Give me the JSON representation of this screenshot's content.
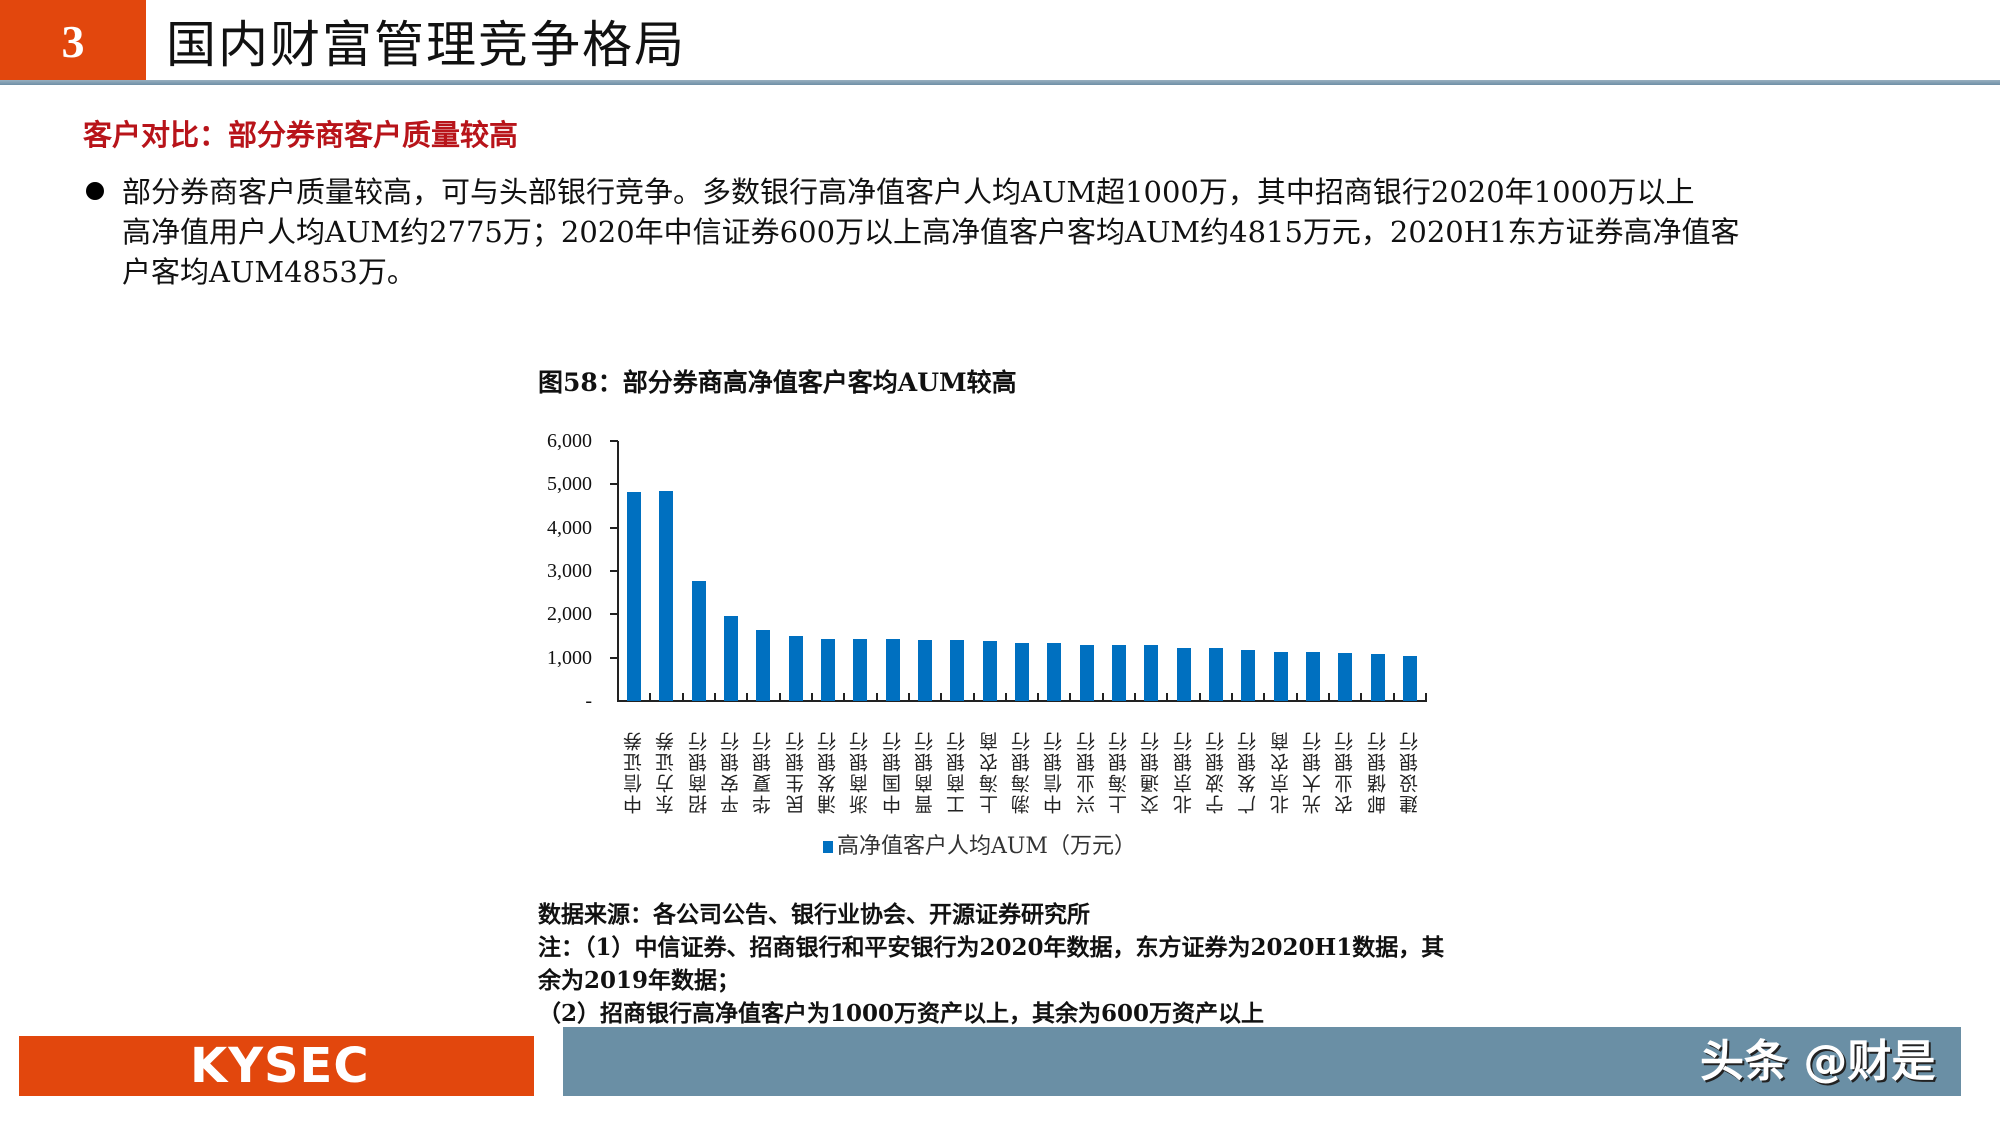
{
  "header": {
    "section_number": "3",
    "title": "国内财富管理竞争格局"
  },
  "subtitle": "客户对比：部分券商客户质量较高",
  "bullet": {
    "lines": [
      "部分券商客户质量较高，可与头部银行竞争。多数银行高净值客户人均AUM超1000万，其中招商银行2020年1000万以上",
      "高净值用户人均AUM约2775万；2020年中信证券600万以上高净值客户客均AUM约4815万元，2020H1东方证券高净值客",
      "户客均AUM4853万。"
    ]
  },
  "figure": {
    "title": "图58：部分券商高净值客户客均AUM较高",
    "legend_label": "高净值客户人均AUM（万元）",
    "source": "数据来源：各公司公告、银行业协会、开源证券研究所",
    "notes": [
      "注：（1）中信证券、招商银行和平安银行为2020年数据，东方证券为2020H1数据，其",
      "余为2019年数据；",
      "（2）招商银行高净值客户为1000万资产以上，其余为600万资产以上"
    ]
  },
  "chart_data": {
    "type": "bar",
    "title": "图58：部分券商高净值客户客均AUM较高",
    "xlabel": "",
    "ylabel": "",
    "ylim": [
      0,
      6000
    ],
    "yticks": [
      "-",
      "1,000",
      "2,000",
      "3,000",
      "4,000",
      "5,000",
      "6,000"
    ],
    "ytick_values": [
      0,
      1000,
      2000,
      3000,
      4000,
      5000,
      6000
    ],
    "grid": false,
    "legend_position": "bottom",
    "bar_color": "#0070C0",
    "categories": [
      "中信证券",
      "东方证券",
      "招商银行",
      "平安银行",
      "华夏银行",
      "民生银行",
      "浦发银行",
      "浙商银行",
      "中国银行",
      "晋商银行",
      "工商银行",
      "上海农商",
      "渤海银行",
      "中信银行",
      "兴业银行",
      "上海银行",
      "交通银行",
      "北京银行",
      "宁波银行",
      "广发银行",
      "北京农商",
      "光大银行",
      "农业银行",
      "邮储银行",
      "建设银行"
    ],
    "series": [
      {
        "name": "高净值客户人均AUM（万元）",
        "values": [
          4815,
          4853,
          2775,
          1960,
          1640,
          1490,
          1430,
          1430,
          1430,
          1410,
          1410,
          1375,
          1345,
          1345,
          1285,
          1285,
          1285,
          1230,
          1230,
          1170,
          1140,
          1140,
          1115,
          1075,
          1050
        ]
      }
    ]
  },
  "footer": {
    "logo": "KYSEC",
    "watermark": "头条 @财是"
  },
  "colors": {
    "brand_orange": "#E2470D",
    "footer_grey_blue": "#6A8FA5",
    "subtitle_red": "#B8141A",
    "bar_blue": "#0070C0"
  }
}
